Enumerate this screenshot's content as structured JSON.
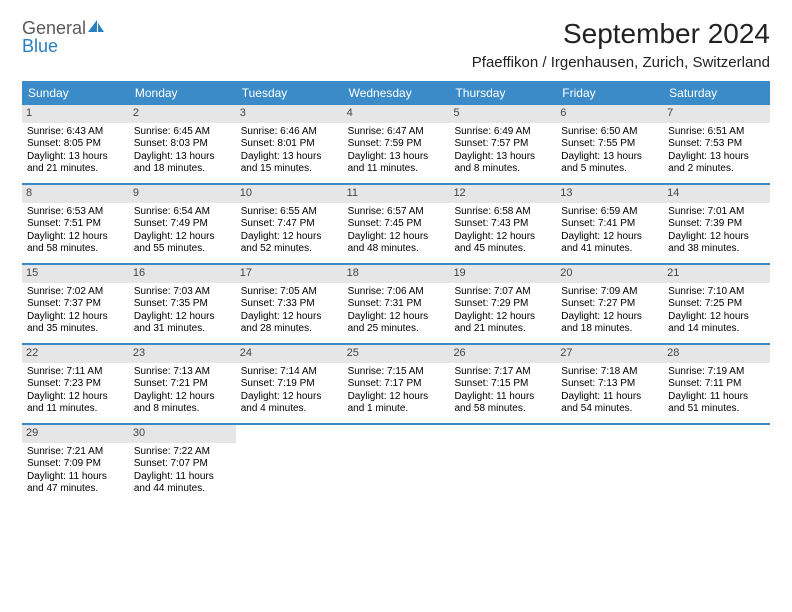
{
  "logo": {
    "text1": "General",
    "text2": "Blue"
  },
  "title": "September 2024",
  "location": "Pfaeffikon / Irgenhausen, Zurich, Switzerland",
  "colors": {
    "header_bg": "#3b8bc9",
    "header_text": "#ffffff",
    "daynum_bg": "#e6e6e6",
    "week_border": "#3b8bc9",
    "logo_gray": "#5a5a5a",
    "logo_blue": "#2a7fbf"
  },
  "day_headers": [
    "Sunday",
    "Monday",
    "Tuesday",
    "Wednesday",
    "Thursday",
    "Friday",
    "Saturday"
  ],
  "weeks": [
    [
      {
        "n": "1",
        "sr": "Sunrise: 6:43 AM",
        "ss": "Sunset: 8:05 PM",
        "d1": "Daylight: 13 hours",
        "d2": "and 21 minutes."
      },
      {
        "n": "2",
        "sr": "Sunrise: 6:45 AM",
        "ss": "Sunset: 8:03 PM",
        "d1": "Daylight: 13 hours",
        "d2": "and 18 minutes."
      },
      {
        "n": "3",
        "sr": "Sunrise: 6:46 AM",
        "ss": "Sunset: 8:01 PM",
        "d1": "Daylight: 13 hours",
        "d2": "and 15 minutes."
      },
      {
        "n": "4",
        "sr": "Sunrise: 6:47 AM",
        "ss": "Sunset: 7:59 PM",
        "d1": "Daylight: 13 hours",
        "d2": "and 11 minutes."
      },
      {
        "n": "5",
        "sr": "Sunrise: 6:49 AM",
        "ss": "Sunset: 7:57 PM",
        "d1": "Daylight: 13 hours",
        "d2": "and 8 minutes."
      },
      {
        "n": "6",
        "sr": "Sunrise: 6:50 AM",
        "ss": "Sunset: 7:55 PM",
        "d1": "Daylight: 13 hours",
        "d2": "and 5 minutes."
      },
      {
        "n": "7",
        "sr": "Sunrise: 6:51 AM",
        "ss": "Sunset: 7:53 PM",
        "d1": "Daylight: 13 hours",
        "d2": "and 2 minutes."
      }
    ],
    [
      {
        "n": "8",
        "sr": "Sunrise: 6:53 AM",
        "ss": "Sunset: 7:51 PM",
        "d1": "Daylight: 12 hours",
        "d2": "and 58 minutes."
      },
      {
        "n": "9",
        "sr": "Sunrise: 6:54 AM",
        "ss": "Sunset: 7:49 PM",
        "d1": "Daylight: 12 hours",
        "d2": "and 55 minutes."
      },
      {
        "n": "10",
        "sr": "Sunrise: 6:55 AM",
        "ss": "Sunset: 7:47 PM",
        "d1": "Daylight: 12 hours",
        "d2": "and 52 minutes."
      },
      {
        "n": "11",
        "sr": "Sunrise: 6:57 AM",
        "ss": "Sunset: 7:45 PM",
        "d1": "Daylight: 12 hours",
        "d2": "and 48 minutes."
      },
      {
        "n": "12",
        "sr": "Sunrise: 6:58 AM",
        "ss": "Sunset: 7:43 PM",
        "d1": "Daylight: 12 hours",
        "d2": "and 45 minutes."
      },
      {
        "n": "13",
        "sr": "Sunrise: 6:59 AM",
        "ss": "Sunset: 7:41 PM",
        "d1": "Daylight: 12 hours",
        "d2": "and 41 minutes."
      },
      {
        "n": "14",
        "sr": "Sunrise: 7:01 AM",
        "ss": "Sunset: 7:39 PM",
        "d1": "Daylight: 12 hours",
        "d2": "and 38 minutes."
      }
    ],
    [
      {
        "n": "15",
        "sr": "Sunrise: 7:02 AM",
        "ss": "Sunset: 7:37 PM",
        "d1": "Daylight: 12 hours",
        "d2": "and 35 minutes."
      },
      {
        "n": "16",
        "sr": "Sunrise: 7:03 AM",
        "ss": "Sunset: 7:35 PM",
        "d1": "Daylight: 12 hours",
        "d2": "and 31 minutes."
      },
      {
        "n": "17",
        "sr": "Sunrise: 7:05 AM",
        "ss": "Sunset: 7:33 PM",
        "d1": "Daylight: 12 hours",
        "d2": "and 28 minutes."
      },
      {
        "n": "18",
        "sr": "Sunrise: 7:06 AM",
        "ss": "Sunset: 7:31 PM",
        "d1": "Daylight: 12 hours",
        "d2": "and 25 minutes."
      },
      {
        "n": "19",
        "sr": "Sunrise: 7:07 AM",
        "ss": "Sunset: 7:29 PM",
        "d1": "Daylight: 12 hours",
        "d2": "and 21 minutes."
      },
      {
        "n": "20",
        "sr": "Sunrise: 7:09 AM",
        "ss": "Sunset: 7:27 PM",
        "d1": "Daylight: 12 hours",
        "d2": "and 18 minutes."
      },
      {
        "n": "21",
        "sr": "Sunrise: 7:10 AM",
        "ss": "Sunset: 7:25 PM",
        "d1": "Daylight: 12 hours",
        "d2": "and 14 minutes."
      }
    ],
    [
      {
        "n": "22",
        "sr": "Sunrise: 7:11 AM",
        "ss": "Sunset: 7:23 PM",
        "d1": "Daylight: 12 hours",
        "d2": "and 11 minutes."
      },
      {
        "n": "23",
        "sr": "Sunrise: 7:13 AM",
        "ss": "Sunset: 7:21 PM",
        "d1": "Daylight: 12 hours",
        "d2": "and 8 minutes."
      },
      {
        "n": "24",
        "sr": "Sunrise: 7:14 AM",
        "ss": "Sunset: 7:19 PM",
        "d1": "Daylight: 12 hours",
        "d2": "and 4 minutes."
      },
      {
        "n": "25",
        "sr": "Sunrise: 7:15 AM",
        "ss": "Sunset: 7:17 PM",
        "d1": "Daylight: 12 hours",
        "d2": "and 1 minute."
      },
      {
        "n": "26",
        "sr": "Sunrise: 7:17 AM",
        "ss": "Sunset: 7:15 PM",
        "d1": "Daylight: 11 hours",
        "d2": "and 58 minutes."
      },
      {
        "n": "27",
        "sr": "Sunrise: 7:18 AM",
        "ss": "Sunset: 7:13 PM",
        "d1": "Daylight: 11 hours",
        "d2": "and 54 minutes."
      },
      {
        "n": "28",
        "sr": "Sunrise: 7:19 AM",
        "ss": "Sunset: 7:11 PM",
        "d1": "Daylight: 11 hours",
        "d2": "and 51 minutes."
      }
    ],
    [
      {
        "n": "29",
        "sr": "Sunrise: 7:21 AM",
        "ss": "Sunset: 7:09 PM",
        "d1": "Daylight: 11 hours",
        "d2": "and 47 minutes."
      },
      {
        "n": "30",
        "sr": "Sunrise: 7:22 AM",
        "ss": "Sunset: 7:07 PM",
        "d1": "Daylight: 11 hours",
        "d2": "and 44 minutes."
      },
      {
        "empty": true
      },
      {
        "empty": true
      },
      {
        "empty": true
      },
      {
        "empty": true
      },
      {
        "empty": true
      }
    ]
  ]
}
